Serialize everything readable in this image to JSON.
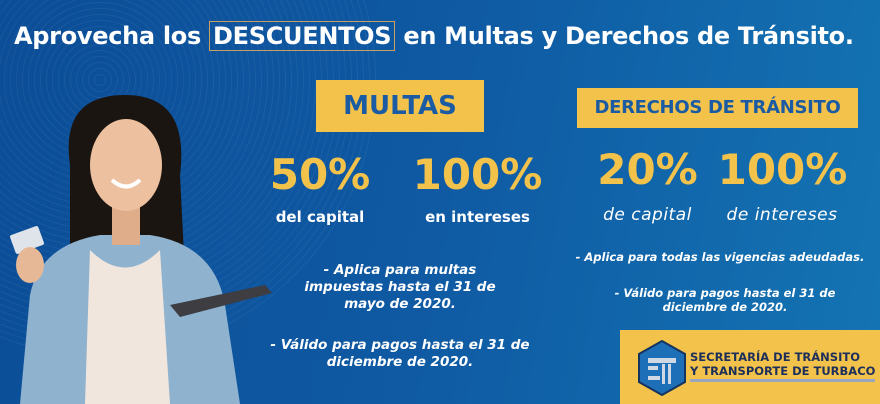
{
  "headline": {
    "before": "Aprovecha los",
    "highlight": "DESCUENTOS",
    "after": "en Multas y  Derechos de Tránsito."
  },
  "multas": {
    "heading": "MULTAS",
    "offers": [
      {
        "percent": "50%",
        "label": "del capital"
      },
      {
        "percent": "100%",
        "label": "en intereses"
      }
    ],
    "notes": [
      [
        "- Aplica para multas",
        "impuestas  hasta el  31 de",
        "mayo de 2020."
      ],
      [
        "- Válido para pagos hasta el 31 de",
        "diciembre de 2020."
      ]
    ]
  },
  "derechos": {
    "heading": "DERECHOS DE TRÁNSITO",
    "offers": [
      {
        "percent": "20%",
        "label": "de capital"
      },
      {
        "percent": "100%",
        "label": "de intereses"
      }
    ],
    "notes": [
      [
        "- Aplica para todas las vigencias adeudadas."
      ],
      [
        "- Válido para pagos hasta el 31 de",
        "diciembre de 2020."
      ]
    ]
  },
  "logo": {
    "line1": "SECRETARÍA DE TRÁNSITO",
    "line2": "Y TRANSPORTE DE TURBACO"
  },
  "colors": {
    "background": "#0f5aa3",
    "accent_yellow": "#f3c24b",
    "heading_blue": "#1a5ba3"
  }
}
